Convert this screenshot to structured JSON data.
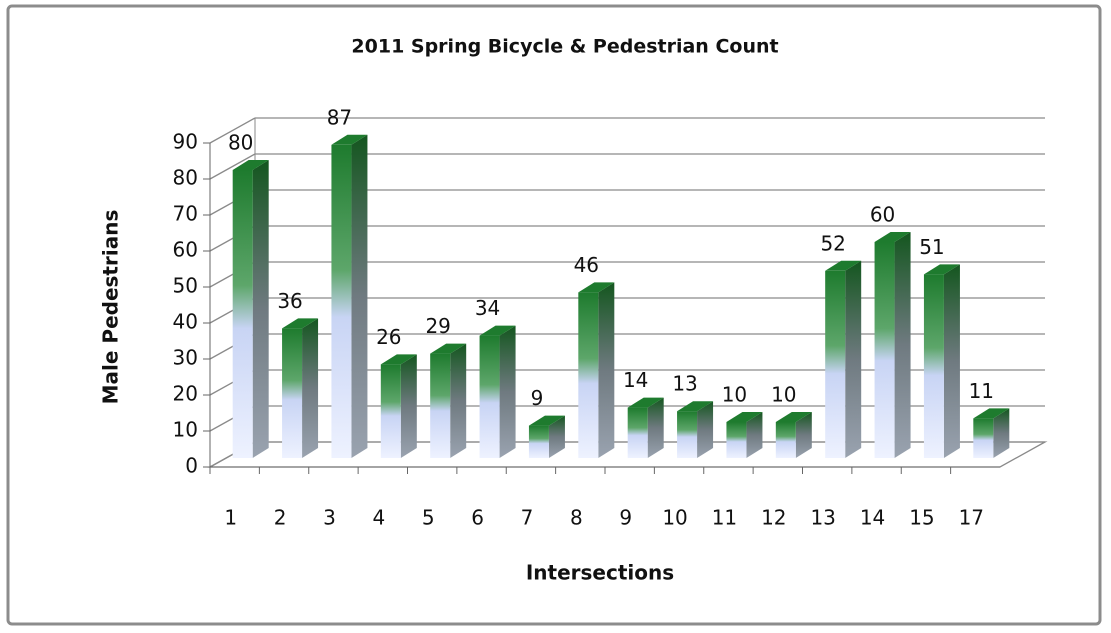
{
  "chart_data": {
    "type": "bar3d",
    "title": "2011 Spring Bicycle & Pedestrian Count",
    "x_label": "Intersections",
    "y_label": "Male Pedestrians",
    "categories": [
      "1",
      "2",
      "3",
      "4",
      "5",
      "6",
      "7",
      "8",
      "9",
      "10",
      "11",
      "12",
      "13",
      "14",
      "15",
      "17"
    ],
    "values": [
      80,
      36,
      87,
      26,
      29,
      34,
      9,
      46,
      14,
      13,
      10,
      10,
      52,
      60,
      51,
      11
    ],
    "color": "#1e7b2e",
    "ylim": [
      0,
      90
    ],
    "yticks": [
      0,
      10,
      20,
      30,
      40,
      50,
      60,
      70,
      80,
      90
    ],
    "grid": true
  }
}
